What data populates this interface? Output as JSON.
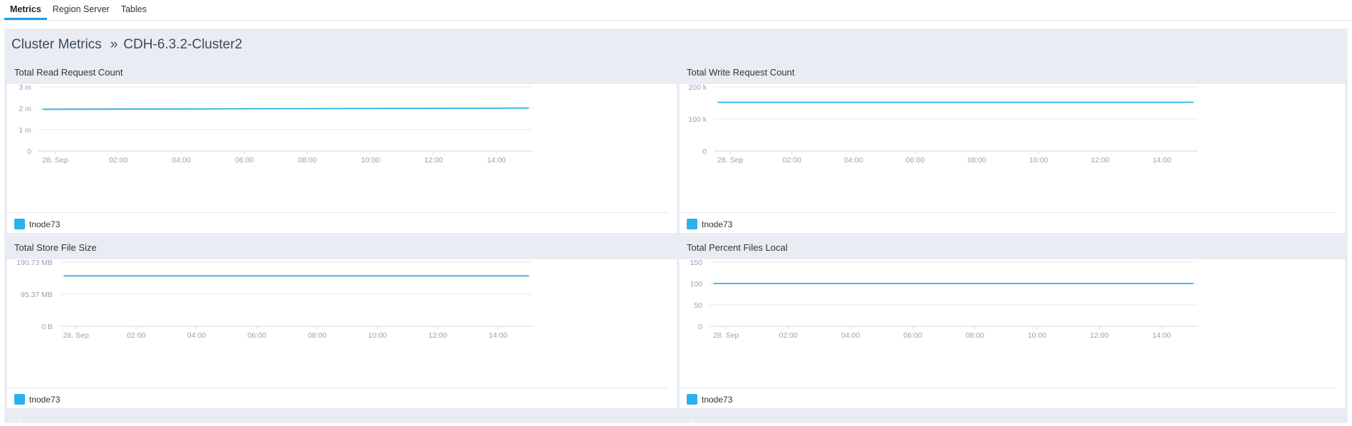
{
  "tabs": [
    {
      "label": "Metrics",
      "active": true
    },
    {
      "label": "Region Server",
      "active": false
    },
    {
      "label": "Tables",
      "active": false
    }
  ],
  "breadcrumb": {
    "root": "Cluster Metrics",
    "separator": "»",
    "current": "CDH-6.3.2-Cluster2"
  },
  "colors": {
    "series": "#2ab3ea",
    "accent": "#1e9be8",
    "background": "#e9edf3"
  },
  "chart_data": [
    {
      "type": "line",
      "title": "Total Read Request Count",
      "x_ticks": [
        "28. Sep",
        "02:00",
        "04:00",
        "06:00",
        "08:00",
        "10:00",
        "12:00",
        "14:00"
      ],
      "y_ticks": [
        {
          "v": 0,
          "label": "0"
        },
        {
          "v": 1,
          "label": "1 m"
        },
        {
          "v": 2,
          "label": "2 m"
        },
        {
          "v": 3,
          "label": "3 m"
        }
      ],
      "ylim": [
        0,
        3
      ],
      "series": [
        {
          "name": "tnode73",
          "start": 1.95,
          "end": 2.01
        }
      ],
      "legend": "tnode73"
    },
    {
      "type": "line",
      "title": "Total Write Request Count",
      "x_ticks": [
        "28. Sep",
        "02:00",
        "04:00",
        "06:00",
        "08:00",
        "10:00",
        "12:00",
        "14:00"
      ],
      "y_ticks": [
        {
          "v": 0,
          "label": "0"
        },
        {
          "v": 100,
          "label": "100 k"
        },
        {
          "v": 200,
          "label": "200 k"
        }
      ],
      "ylim": [
        0,
        200
      ],
      "series": [
        {
          "name": "tnode73",
          "start": 152,
          "end": 152
        }
      ],
      "legend": "tnode73"
    },
    {
      "type": "line",
      "title": "Total Store File Size",
      "x_ticks": [
        "28. Sep",
        "02:00",
        "04:00",
        "06:00",
        "08:00",
        "10:00",
        "12:00",
        "14:00"
      ],
      "y_ticks": [
        {
          "v": 0,
          "label": "0 B"
        },
        {
          "v": 95.37,
          "label": "95.37 MB"
        },
        {
          "v": 190.73,
          "label": "190.73 MB"
        }
      ],
      "ylim": [
        0,
        190.73
      ],
      "series": [
        {
          "name": "tnode73",
          "start": 150,
          "end": 150
        }
      ],
      "legend": "tnode73"
    },
    {
      "type": "line",
      "title": "Total Percent Files Local",
      "x_ticks": [
        "28. Sep",
        "02:00",
        "04:00",
        "06:00",
        "08:00",
        "10:00",
        "12:00",
        "14:00"
      ],
      "y_ticks": [
        {
          "v": 0,
          "label": "0"
        },
        {
          "v": 50,
          "label": "50"
        },
        {
          "v": 100,
          "label": "100"
        },
        {
          "v": 150,
          "label": "150"
        }
      ],
      "ylim": [
        0,
        150
      ],
      "series": [
        {
          "name": "tnode73",
          "start": 100,
          "end": 100
        }
      ],
      "legend": "tnode73"
    }
  ]
}
